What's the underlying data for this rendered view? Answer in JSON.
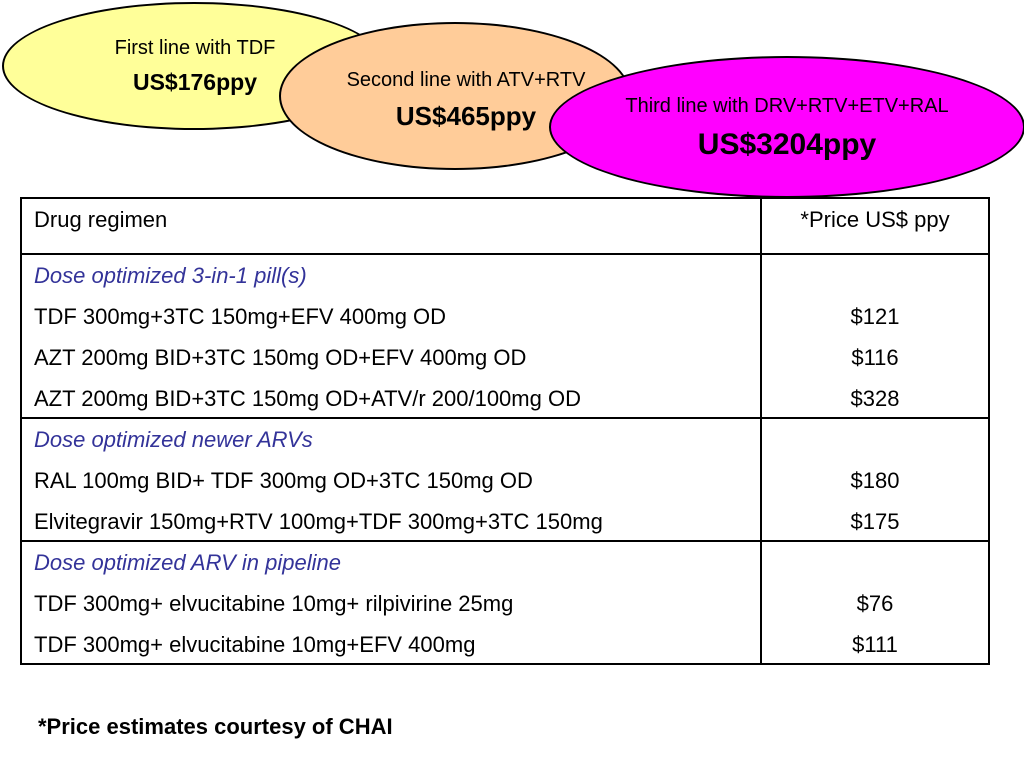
{
  "bubbles": [
    {
      "label": "First line with TDF",
      "price": "US$176ppy",
      "color": "#ffff99"
    },
    {
      "label": "Second line with ATV+RTV",
      "price": "US$465ppy",
      "color": "#ffcc99"
    },
    {
      "label": "Third line with DRV+RTV+ETV+RAL",
      "price": "US$3204ppy",
      "color": "#ff00ff"
    }
  ],
  "table": {
    "header": {
      "drug": "Drug regimen",
      "price": "*Price US$ ppy"
    },
    "groups": [
      {
        "category": "Dose optimized 3-in-1 pill(s)",
        "rows": [
          {
            "drug": "TDF 300mg+3TC 150mg+EFV 400mg OD",
            "price": "$121"
          },
          {
            "drug": "AZT 200mg BID+3TC 150mg OD+EFV 400mg OD",
            "price": "$116"
          },
          {
            "drug": "AZT 200mg BID+3TC 150mg OD+ATV/r 200/100mg OD",
            "price": "$328"
          }
        ]
      },
      {
        "category": "Dose optimized newer ARVs",
        "rows": [
          {
            "drug": "RAL 100mg BID+ TDF 300mg OD+3TC 150mg OD",
            "price": "$180"
          },
          {
            "drug": "Elvitegravir 150mg+RTV 100mg+TDF 300mg+3TC 150mg",
            "price": "$175"
          }
        ]
      },
      {
        "category": "Dose optimized ARV in pipeline",
        "rows": [
          {
            "drug": "TDF 300mg+ elvucitabine 10mg+ rilpivirine 25mg",
            "price": "$76"
          },
          {
            "drug": "TDF 300mg+ elvucitabine 10mg+EFV 400mg",
            "price": "$111"
          }
        ]
      }
    ]
  },
  "footnote": "*Price estimates courtesy of CHAI",
  "colors": {
    "category_text": "#333399"
  }
}
